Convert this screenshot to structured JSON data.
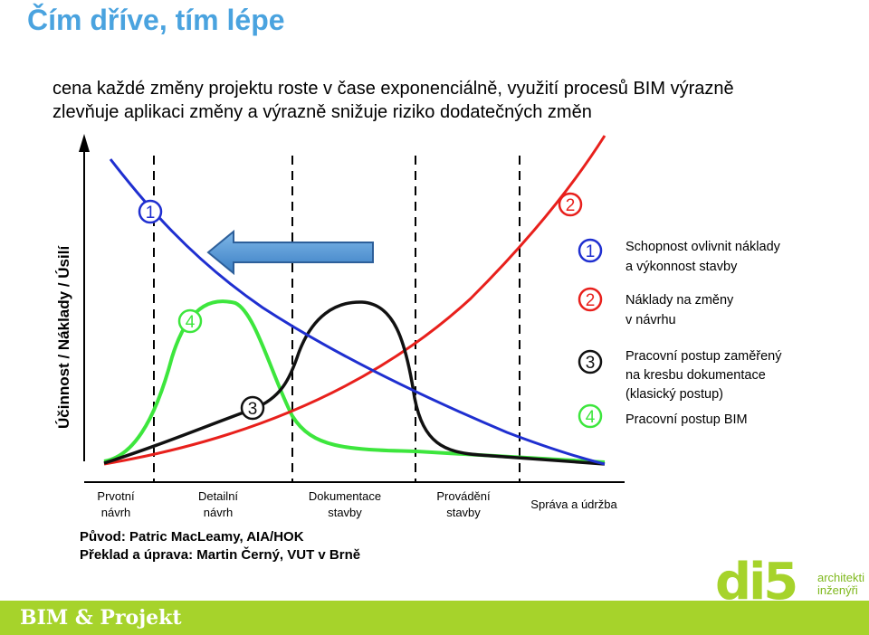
{
  "slide": {
    "title": "Čím dříve, tím lépe",
    "subtitle_line1": "cena každé změny projektu roste v čase exponenciálně, využití procesů BIM  výrazně",
    "subtitle_line2": "zlevňuje aplikaci změny a výrazně snižuje riziko dodatečných změn"
  },
  "diagram": {
    "y_axis_label": "Účinnost / Náklady / Úsilí",
    "phases": [
      {
        "line1": "Prvotní",
        "line2": "návrh"
      },
      {
        "line1": "Detailní",
        "line2": "návrh"
      },
      {
        "line1": "Dokumentace",
        "line2": "stavby"
      },
      {
        "line1": "Provádění",
        "line2": "stavby"
      },
      {
        "line1": "Správa a údržba",
        "line2": ""
      }
    ],
    "curve_markers": [
      "1",
      "2",
      "3",
      "4"
    ],
    "legend": [
      {
        "number": "1",
        "line1": "Schopnost ovlivnit náklady",
        "line2": "a výkonnost stavby",
        "line3": "",
        "color": "#1f2fd0"
      },
      {
        "number": "2",
        "line1": "Náklady na změny",
        "line2": "v návrhu",
        "line3": "",
        "color": "#e8201c"
      },
      {
        "number": "3",
        "line1": "Pracovní postup zaměřený",
        "line2": "na kresbu dokumentace",
        "line3": "(klasický postup)",
        "color": "#111111"
      },
      {
        "number": "4",
        "line1": "Pracovní postup BIM",
        "line2": "",
        "line3": "",
        "color": "#3de63d"
      }
    ],
    "credits": {
      "origin": "Původ: Patric MacLeamy, AIA/HOK",
      "translation": "Překlad a úprava: Martin Černý, VUT v Brně"
    },
    "colors": {
      "blue": "#1f2fd0",
      "red": "#e8201c",
      "black": "#111111",
      "green": "#3de63d",
      "arrow": "#4a8fd0"
    }
  },
  "footer": {
    "text": "BIM & Projekt",
    "logo_text": "di5",
    "logo_tagline1": "architekti",
    "logo_tagline2": "inženýři",
    "bar_color": "#a6d32b"
  }
}
